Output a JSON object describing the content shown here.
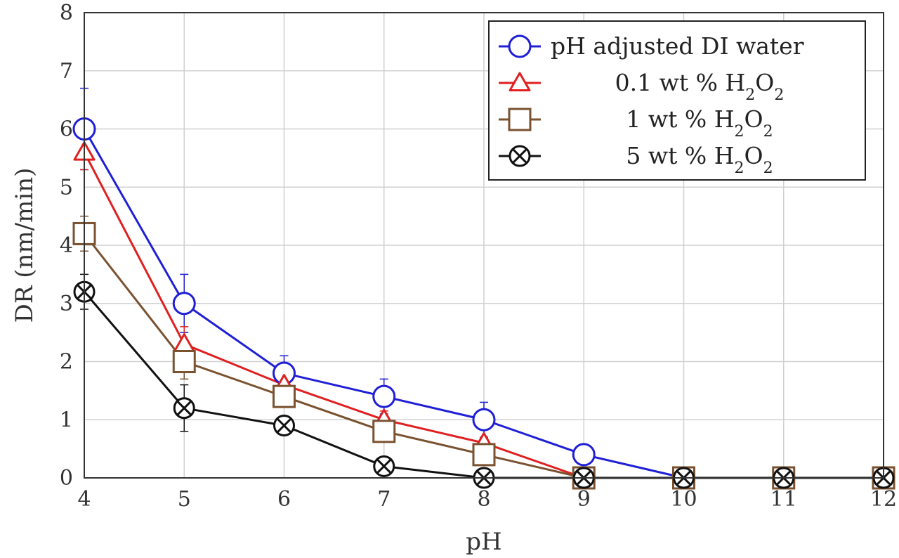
{
  "chart_data": {
    "type": "line",
    "xlabel": "pH",
    "ylabel": "DR (nm/min)",
    "xlim": [
      4,
      12
    ],
    "ylim": [
      0,
      8
    ],
    "x_ticks": [
      "4",
      "5",
      "6",
      "7",
      "8",
      "9",
      "10",
      "11",
      "12"
    ],
    "y_ticks": [
      "0",
      "1",
      "2",
      "3",
      "4",
      "5",
      "6",
      "7",
      "8"
    ],
    "grid": true,
    "legend_position": "top-right",
    "series": [
      {
        "name": "pH adjusted DI water",
        "legend_parts": [
          "pH adjusted DI water"
        ],
        "color": "#1f1fd6",
        "marker": "circle",
        "x": [
          4,
          5,
          6,
          7,
          8,
          9,
          10,
          11,
          12
        ],
        "y": [
          6.0,
          3.0,
          1.8,
          1.4,
          1.0,
          0.4,
          0,
          0,
          0
        ],
        "err": [
          0.7,
          0.5,
          0.3,
          0.3,
          0.3,
          0,
          0,
          0,
          0
        ]
      },
      {
        "name": "0.1 wt % H2O2",
        "legend_parts": [
          "0.1 wt % H",
          "2",
          "O",
          "2"
        ],
        "color": "#e02020",
        "marker": "triangle",
        "x": [
          4,
          5,
          6,
          7,
          8,
          9,
          10,
          11,
          12
        ],
        "y": [
          5.6,
          2.3,
          1.6,
          1.0,
          0.6,
          0,
          0,
          0,
          0
        ],
        "err": [
          0.3,
          0.3,
          0.15,
          0.15,
          0.1,
          0,
          0,
          0,
          0
        ]
      },
      {
        "name": "1 wt % H2O2",
        "legend_parts": [
          "1 wt % H",
          "2",
          "O",
          "2"
        ],
        "color": "#7a5230",
        "marker": "square",
        "x": [
          4,
          5,
          6,
          7,
          8,
          9,
          10,
          11,
          12
        ],
        "y": [
          4.2,
          2.0,
          1.4,
          0.8,
          0.4,
          0,
          0,
          0,
          0
        ],
        "err": [
          0.3,
          0.3,
          0.15,
          0.1,
          0.1,
          0,
          0,
          0,
          0
        ]
      },
      {
        "name": "5 wt % H2O2",
        "legend_parts": [
          "5 wt % H",
          "2",
          "O",
          "2"
        ],
        "color": "#111111",
        "marker": "circle-x",
        "x": [
          4,
          5,
          6,
          7,
          8,
          9,
          10,
          11,
          12
        ],
        "y": [
          3.2,
          1.2,
          0.9,
          0.2,
          0,
          0,
          0,
          0,
          0
        ],
        "err": [
          0.3,
          0.4,
          0.1,
          0.05,
          0,
          0,
          0,
          0,
          0
        ]
      }
    ]
  }
}
